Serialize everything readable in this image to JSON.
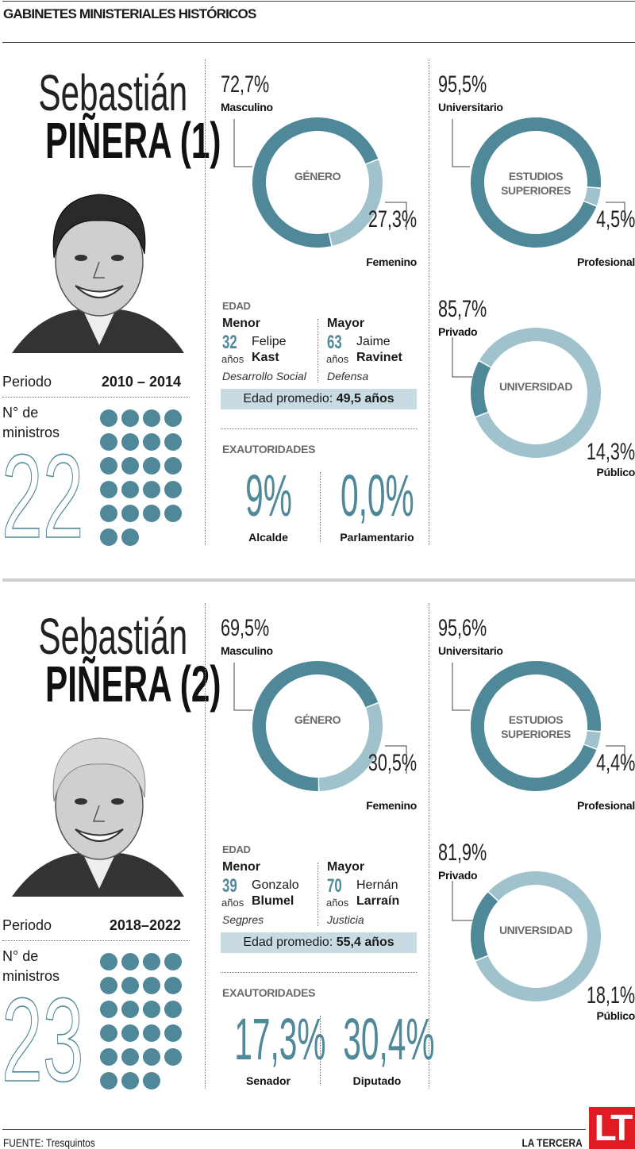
{
  "header": {
    "title": "GABINETES MINISTERIALES HISTÓRICOS"
  },
  "colors": {
    "dark": "#4f8898",
    "light": "#9fc2cc",
    "avg_box": "#c9dbe2",
    "brand_red": "#e01b22"
  },
  "sections": [
    {
      "first_name": "Sebastián",
      "last_name": "PIÑERA (1)",
      "period_label": "Periodo",
      "period": "2010 – 2014",
      "ministers_label_1": "N° de",
      "ministers_label_2": "ministros",
      "ministers_count": "22",
      "ministers_dots": 22,
      "edad": {
        "title": "EDAD",
        "menor": {
          "label": "Menor",
          "age": "32",
          "years": "años",
          "first": "Felipe",
          "last": "Kast",
          "ministry": "Desarrollo Social"
        },
        "mayor": {
          "label": "Mayor",
          "age": "63",
          "years": "años",
          "first": "Jaime",
          "last": "Ravinet",
          "ministry": "Defensa"
        },
        "avg_label": "Edad promedio:",
        "avg_value": "49,5 años"
      },
      "exautoridades": {
        "title": "EXAUTORIDADES",
        "items": [
          {
            "value": "9%",
            "label": "Alcalde"
          },
          {
            "value": "0,0%",
            "label": "Parlamentario"
          }
        ]
      }
    },
    {
      "first_name": "Sebastián",
      "last_name": "PIÑERA (2)",
      "period_label": "Periodo",
      "period": "2018–2022",
      "ministers_label_1": "N° de",
      "ministers_label_2": "ministros",
      "ministers_count": "23",
      "ministers_dots": 23,
      "edad": {
        "title": "EDAD",
        "menor": {
          "label": "Menor",
          "age": "39",
          "years": "años",
          "first": "Gonzalo",
          "last": "Blumel",
          "ministry": "Segpres"
        },
        "mayor": {
          "label": "Mayor",
          "age": "70",
          "years": "años",
          "first": "Hernán",
          "last": "Larraín",
          "ministry": "Justicia"
        },
        "avg_label": "Edad promedio:",
        "avg_value": "55,4 años"
      },
      "exautoridades": {
        "title": "EXAUTORIDADES",
        "items": [
          {
            "value": "17,3%",
            "label": "Senador"
          },
          {
            "value": "30,4%",
            "label": "Diputado"
          }
        ]
      }
    }
  ],
  "chart_data": [
    {
      "type": "pie",
      "title": "GÉNERO",
      "slices": [
        {
          "label": "Masculino",
          "value": 72.7,
          "display": "72,7%",
          "color": "#4f8898"
        },
        {
          "label": "Femenino",
          "value": 27.3,
          "display": "27,3%",
          "color": "#9fc2cc"
        }
      ]
    },
    {
      "type": "pie",
      "title": "ESTUDIOS SUPERIORES",
      "slices": [
        {
          "label": "Universitario",
          "value": 95.5,
          "display": "95,5%",
          "color": "#4f8898"
        },
        {
          "label": "Profesional",
          "value": 4.5,
          "display": "4,5%",
          "color": "#9fc2cc"
        }
      ]
    },
    {
      "type": "pie",
      "title": "UNIVERSIDAD",
      "slices": [
        {
          "label": "Público",
          "value": 14.3,
          "display": "14,3%",
          "color": "#4f8898"
        },
        {
          "label": "Privado",
          "value": 85.7,
          "display": "85,7%",
          "color": "#9fc2cc"
        }
      ]
    },
    {
      "type": "pie",
      "title": "GÉNERO",
      "slices": [
        {
          "label": "Masculino",
          "value": 69.5,
          "display": "69,5%",
          "color": "#4f8898"
        },
        {
          "label": "Femenino",
          "value": 30.5,
          "display": "30,5%",
          "color": "#9fc2cc"
        }
      ]
    },
    {
      "type": "pie",
      "title": "ESTUDIOS SUPERIORES",
      "slices": [
        {
          "label": "Universitario",
          "value": 95.6,
          "display": "95,6%",
          "color": "#4f8898"
        },
        {
          "label": "Profesional",
          "value": 4.4,
          "display": "4,4%",
          "color": "#9fc2cc"
        }
      ]
    },
    {
      "type": "pie",
      "title": "UNIVERSIDAD",
      "slices": [
        {
          "label": "Público",
          "value": 18.1,
          "display": "18,1%",
          "color": "#4f8898"
        },
        {
          "label": "Privado",
          "value": 81.9,
          "display": "81,9%",
          "color": "#9fc2cc"
        }
      ]
    }
  ],
  "footer": {
    "source": "FUENTE: Tresquintos",
    "brand": "LA TERCERA",
    "logo_text": "LT"
  }
}
